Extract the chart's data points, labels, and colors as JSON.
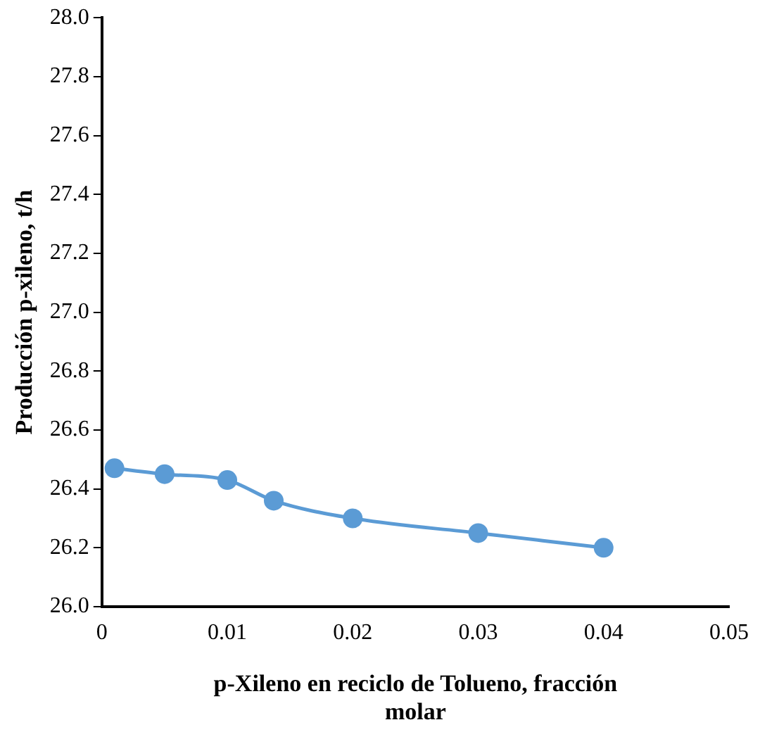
{
  "chart_data": {
    "type": "line",
    "xlabel": "p-Xileno en reciclo de Tolueno, fracción molar",
    "ylabel": "Producción p-xileno, t/h",
    "x": [
      0.001,
      0.005,
      0.01,
      0.0137,
      0.02,
      0.03,
      0.04
    ],
    "series": [
      {
        "color": "#5b9bd5",
        "values": [
          26.47,
          26.45,
          26.43,
          26.36,
          26.3,
          26.25,
          26.2
        ]
      }
    ],
    "xlim": [
      0,
      0.05
    ],
    "xticks": [
      0,
      0.01,
      0.02,
      0.03,
      0.04,
      0.05
    ],
    "ylim": [
      26.0,
      28.0
    ],
    "yticks": [
      {
        "value": 26.0,
        "label": "26.0"
      },
      {
        "value": 26.2,
        "label": "26.2"
      },
      {
        "value": 26.4,
        "label": "26.4"
      },
      {
        "value": 26.6,
        "label": "26.6"
      },
      {
        "value": 26.8,
        "label": "26.8"
      },
      {
        "value": 27.0,
        "label": "27.0"
      },
      {
        "value": 27.2,
        "label": "27.2"
      },
      {
        "value": 27.4,
        "label": "27.4"
      },
      {
        "value": 27.6,
        "label": "27.6"
      },
      {
        "value": 27.8,
        "label": "27.8"
      },
      {
        "value": 28.0,
        "label": "28.0"
      }
    ],
    "grid": false,
    "legend": false,
    "marker": "circle",
    "line_style": "solid"
  }
}
